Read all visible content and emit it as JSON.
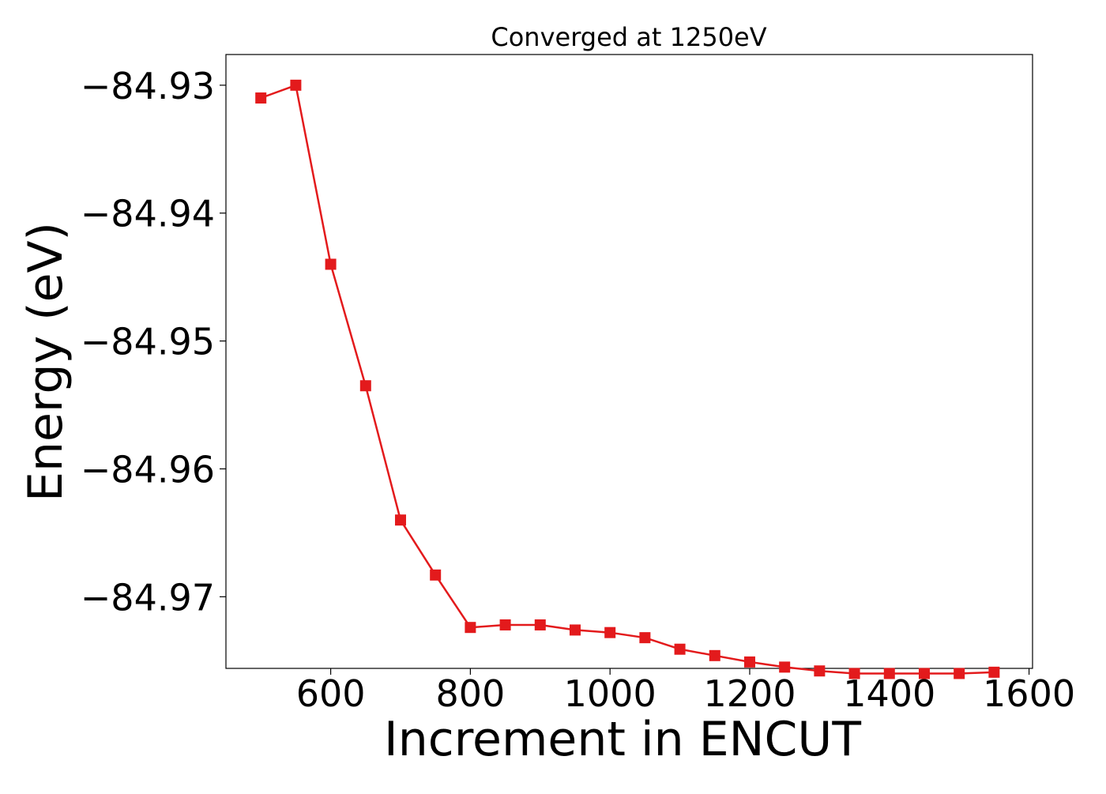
{
  "chart_data": {
    "type": "line",
    "title": "Converged at 1250eV",
    "xlabel": "Increment in ENCUT",
    "ylabel": "Energy (eV)",
    "xlim": [
      450,
      1605
    ],
    "ylim": [
      -84.9756,
      -84.9276
    ],
    "xticks": [
      600,
      800,
      1000,
      1200,
      1400,
      1600
    ],
    "xtick_labels": [
      "600",
      "800",
      "1000",
      "1200",
      "1400",
      "1600"
    ],
    "yticks": [
      -84.93,
      -84.94,
      -84.95,
      -84.96,
      -84.97
    ],
    "ytick_labels": [
      "−84.93",
      "−84.94",
      "−84.95",
      "−84.96",
      "−84.97"
    ],
    "grid": false,
    "marker": "square",
    "series": [
      {
        "color": "#e31a1c",
        "x": [
          500,
          550,
          600,
          650,
          700,
          750,
          800,
          850,
          900,
          950,
          1000,
          1050,
          1100,
          1150,
          1200,
          1250,
          1300,
          1350,
          1400,
          1450,
          1500,
          1550
        ],
        "y": [
          -84.931,
          -84.93,
          -84.944,
          -84.9535,
          -84.964,
          -84.9683,
          -84.9724,
          -84.9722,
          -84.9722,
          -84.9726,
          -84.9728,
          -84.9732,
          -84.9741,
          -84.9746,
          -84.9751,
          -84.9755,
          -84.9758,
          -84.976,
          -84.976,
          -84.976,
          -84.976,
          -84.9759
        ]
      }
    ]
  }
}
